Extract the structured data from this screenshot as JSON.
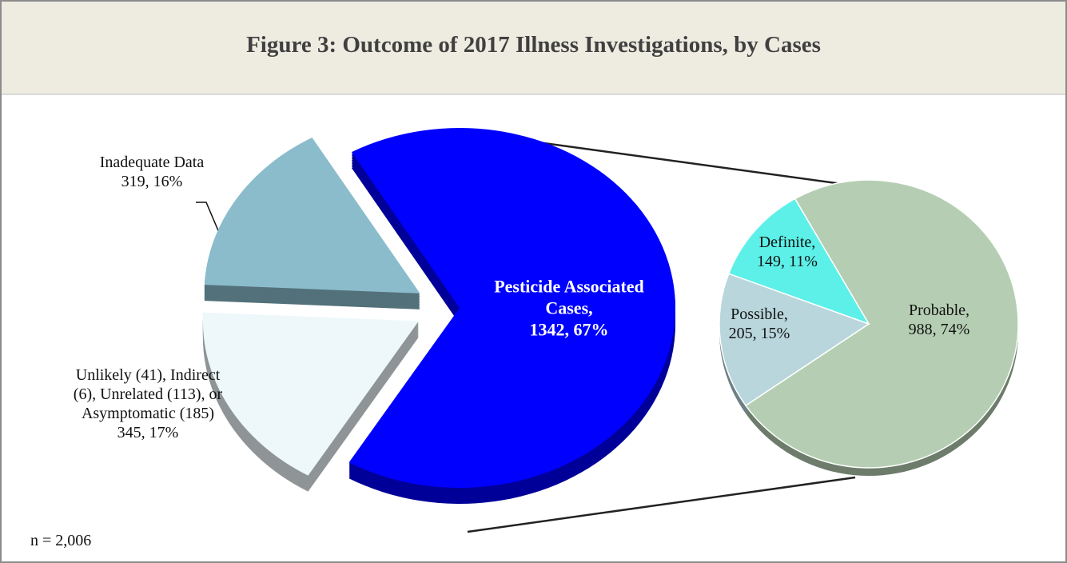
{
  "chart_data": [
    {
      "type": "pie",
      "title": "Figure 3: Outcome of 2017 Illness Investigations, by Cases",
      "note": "n = 2,006",
      "categories": [
        "Pesticide Associated Cases,",
        "Unlikely (41), Indirect (6), Unrelated (113), or Asymptomatic (185)",
        "Inadequate Data"
      ],
      "values": [
        1342,
        345,
        319
      ],
      "value_labels": [
        "1342, 67%",
        "345, 17%",
        "319, 16%"
      ],
      "colors": [
        "#0000ff",
        "#eef8fb",
        "#8bbccc"
      ]
    },
    {
      "type": "pie",
      "categories": [
        "Probable,",
        "Possible,",
        "Definite,"
      ],
      "values": [
        988,
        205,
        149
      ],
      "value_labels": [
        "988, 74%",
        "205, 15%",
        "149, 11%"
      ],
      "colors": [
        "#b5ceb3",
        "#b8d6dc",
        "#5cf0e8"
      ]
    }
  ]
}
